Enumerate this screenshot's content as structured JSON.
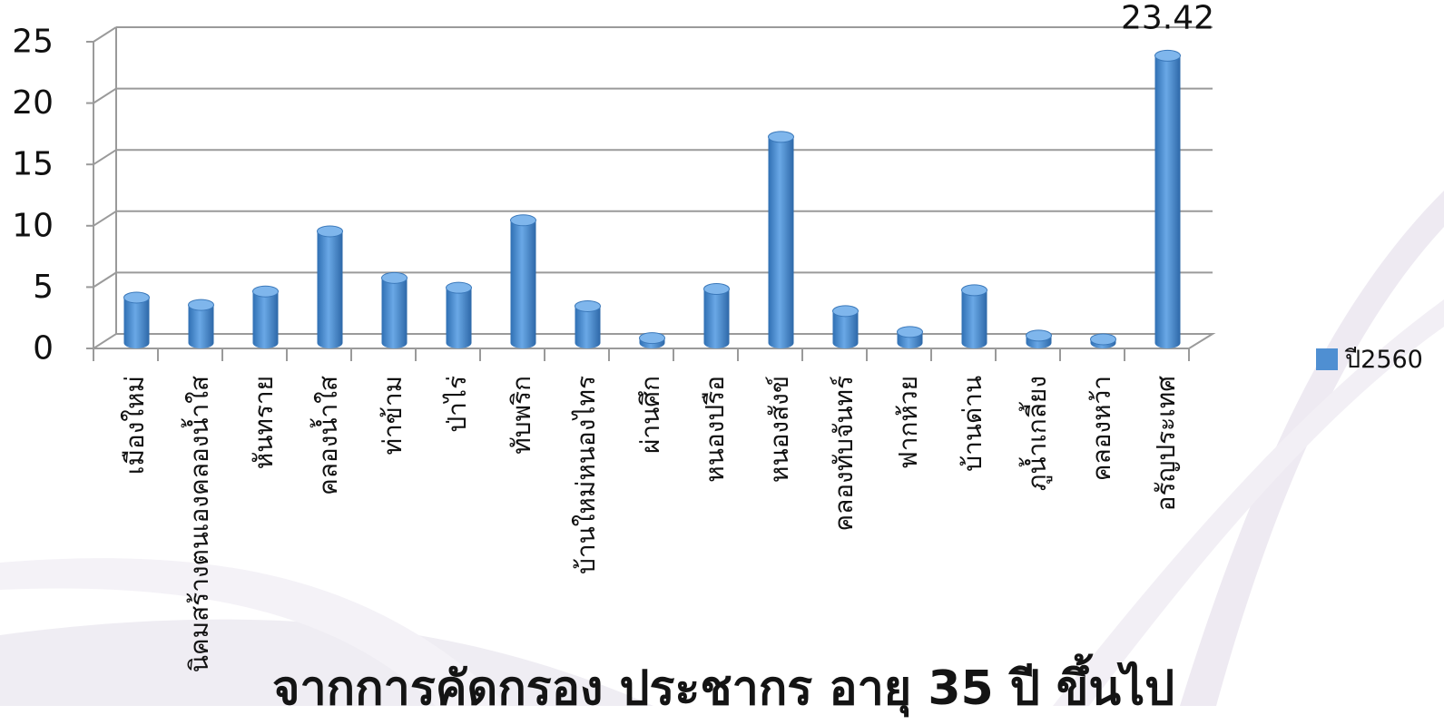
{
  "chart_data": {
    "type": "bar",
    "categories": [
      "เมืองใหม่",
      "นิคมสร้างตนเองคลองน้ำใส",
      "หันทราย",
      "คลองน้ำใส",
      "ท่าข้าม",
      "ป่าไร่",
      "ทับพริก",
      "บ้านใหม่หนองไทร",
      "ผ่านศึก",
      "หนองปรือ",
      "หนองสังข์",
      "คลองทับจันทร์",
      "ฟากห้วย",
      "บ้านด่าน",
      "ภูน้ำเกลี้ยง",
      "คลองหว้า",
      "อรัญประเทศ"
    ],
    "series": [
      {
        "name": "ปี2560",
        "values": [
          3.7,
          3.1,
          4.2,
          9.1,
          5.3,
          4.5,
          10.0,
          3.0,
          0.4,
          4.4,
          16.8,
          2.6,
          0.9,
          4.3,
          0.6,
          0.3,
          23.42
        ]
      }
    ],
    "yticks": [
      "0",
      "5",
      "10",
      "15",
      "20",
      "25"
    ],
    "ylim": [
      0,
      25
    ],
    "data_labels": [
      {
        "index": 16,
        "text": "23.42"
      }
    ],
    "legend_position": "right",
    "grid": true,
    "bar_color": "#4f8fd2"
  },
  "caption": "จากการคัดกรอง ประชากร อายุ 35 ปี ขึ้นไป"
}
